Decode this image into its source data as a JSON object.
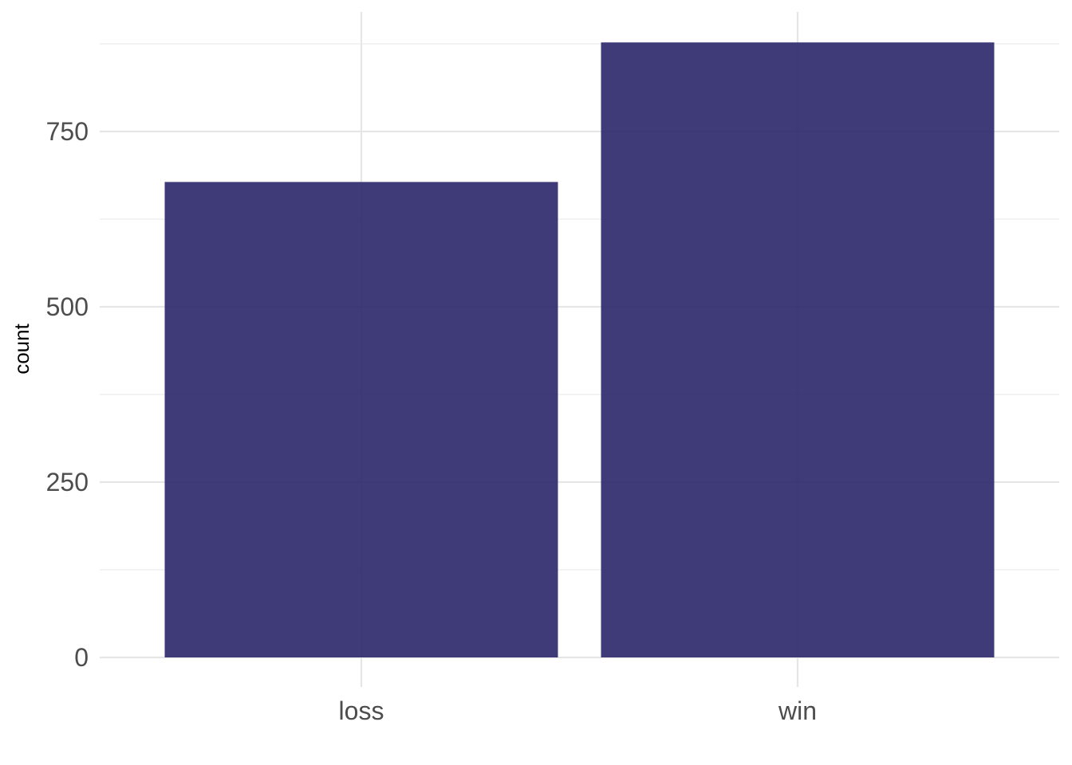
{
  "chart_data": {
    "type": "bar",
    "categories": [
      "loss",
      "win"
    ],
    "values": [
      678,
      877
    ],
    "xlabel": "",
    "ylabel": "count",
    "ylim": [
      0,
      877
    ],
    "y_ticks": [
      0,
      250,
      500,
      750
    ],
    "y_tick_labels": [
      "0",
      "250",
      "500",
      "750"
    ],
    "y_minor_ticks": [
      125,
      375,
      625,
      875
    ],
    "grid": true,
    "bar_color": "#2e2a6d"
  }
}
